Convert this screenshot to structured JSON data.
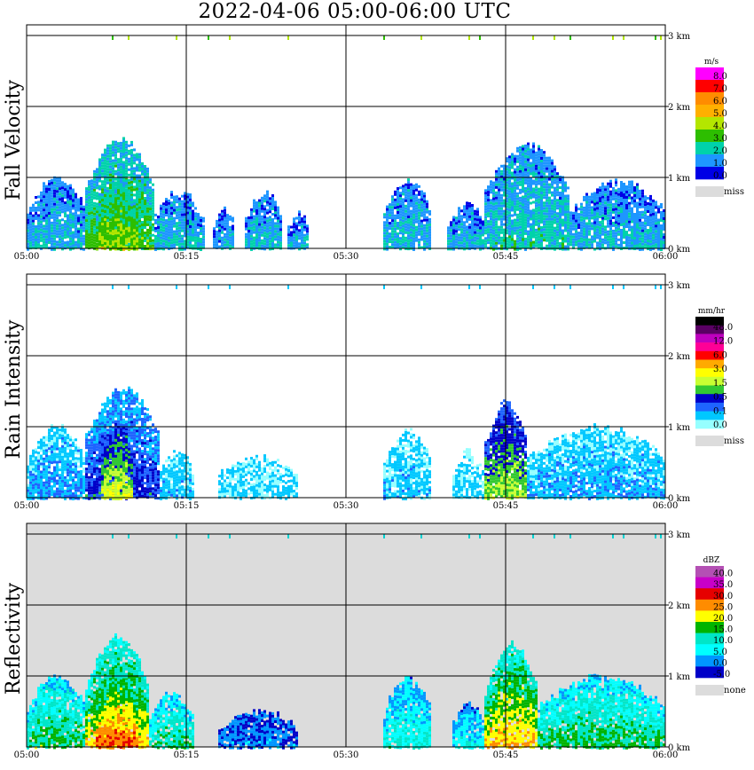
{
  "title": "2022-04-06   05:00-06:00 UTC",
  "x_ticks": [
    "05:00",
    "05:15",
    "05:30",
    "05:45",
    "06:00"
  ],
  "y_ticks": [
    "0 km",
    "1 km",
    "2 km",
    "3 km"
  ],
  "colors": {
    "missing": "#dcdcdc",
    "grid": "#000000"
  },
  "chart_data": [
    {
      "type": "heatmap",
      "ylabel": "Fall Velocity",
      "x_range": [
        "05:00",
        "06:00"
      ],
      "ylim_km": [
        0,
        3.1
      ],
      "grid": true,
      "legend_placement": "right",
      "background": "white",
      "colorbar": {
        "unit": "m/s",
        "labels": [
          "8.0",
          "7.0",
          "6.0",
          "5.0",
          "4.0",
          "3.0",
          "2.0",
          "1.0",
          "0.0"
        ],
        "colors": [
          "#ff00ff",
          "#ff0000",
          "#ff8c00",
          "#ffb000",
          "#b4e600",
          "#2dbe00",
          "#00d2aa",
          "#1e96ff",
          "#0000e6"
        ],
        "missing_label": "miss"
      },
      "echoes": [
        {
          "t0": 0.0,
          "t1": 5.5,
          "top": 1.0,
          "level": 1.4
        },
        {
          "t0": 5.5,
          "t1": 12.0,
          "top": 1.55,
          "level": 2.8
        },
        {
          "t0": 6.5,
          "t1": 10.5,
          "top": 1.0,
          "level": 3.6
        },
        {
          "t0": 12.0,
          "t1": 16.5,
          "top": 0.8,
          "level": 1.5
        },
        {
          "t0": 17.5,
          "t1": 19.5,
          "top": 0.55,
          "level": 1.2
        },
        {
          "t0": 20.5,
          "t1": 24.0,
          "top": 0.78,
          "level": 1.5
        },
        {
          "t0": 24.5,
          "t1": 26.5,
          "top": 0.5,
          "level": 1.3
        },
        {
          "t0": 33.5,
          "t1": 38.0,
          "top": 0.95,
          "level": 1.5
        },
        {
          "t0": 39.5,
          "t1": 43.0,
          "top": 0.65,
          "level": 1.4
        },
        {
          "t0": 43.0,
          "t1": 51.0,
          "top": 1.45,
          "level": 1.8
        },
        {
          "t0": 51.0,
          "t1": 60.0,
          "top": 0.95,
          "level": 1.4
        }
      ]
    },
    {
      "type": "heatmap",
      "ylabel": "Rain Intensity",
      "x_range": [
        "05:00",
        "06:00"
      ],
      "ylim_km": [
        0,
        3.1
      ],
      "grid": true,
      "legend_placement": "right",
      "background": "white",
      "colorbar": {
        "unit": "mm/hr",
        "labels": [
          "48.0",
          "12.0",
          "6.0",
          "3.0",
          "1.5",
          "0.5",
          "0.1",
          "0.0"
        ],
        "colors": [
          "#000000",
          "#5a0064",
          "#be00be",
          "#ff0096",
          "#ff0000",
          "#ffaa00",
          "#ffff00",
          "#c8ff32",
          "#32c832",
          "#0000c8",
          "#1e64ff",
          "#00c8ff",
          "#96ffff"
        ],
        "missing_label": "miss"
      },
      "echoes": [
        {
          "t0": 0.0,
          "t1": 5.5,
          "top": 1.0,
          "level": 1.4
        },
        {
          "t0": 5.5,
          "t1": 12.5,
          "top": 1.55,
          "level": 2.6
        },
        {
          "t0": 7.0,
          "t1": 10.0,
          "top": 1.05,
          "level": 5.0
        },
        {
          "t0": 12.5,
          "t1": 15.5,
          "top": 0.7,
          "level": 1.0
        },
        {
          "t0": 18.0,
          "t1": 25.5,
          "top": 0.6,
          "level": 0.6
        },
        {
          "t0": 33.5,
          "t1": 38.0,
          "top": 0.95,
          "level": 0.9
        },
        {
          "t0": 40.0,
          "t1": 43.0,
          "top": 0.65,
          "level": 0.6
        },
        {
          "t0": 43.0,
          "t1": 47.0,
          "top": 1.35,
          "level": 4.5
        },
        {
          "t0": 47.0,
          "t1": 60.0,
          "top": 1.0,
          "level": 1.2
        }
      ]
    },
    {
      "type": "heatmap",
      "ylabel": "Reflectivity",
      "x_range": [
        "05:00",
        "06:00"
      ],
      "ylim_km": [
        0,
        3.1
      ],
      "grid": true,
      "legend_placement": "right",
      "background": "missing",
      "colorbar": {
        "unit": "dBZ",
        "labels": [
          "40.0",
          "35.0",
          "30.0",
          "25.0",
          "20.0",
          "15.0",
          "10.0",
          "5.0",
          "0.0",
          "-5.0"
        ],
        "colors": [
          "#b450b4",
          "#c800c8",
          "#e60000",
          "#ff8c00",
          "#ffff00",
          "#00b400",
          "#00e6c8",
          "#00ffff",
          "#0096ff",
          "#0000c8"
        ],
        "missing_label": "none"
      },
      "echoes": [
        {
          "t0": 0.0,
          "t1": 5.5,
          "top": 1.0,
          "level": 3.5
        },
        {
          "t0": 5.5,
          "t1": 11.5,
          "top": 1.55,
          "level": 5.0
        },
        {
          "t0": 6.5,
          "t1": 10.5,
          "top": 1.05,
          "level": 6.2
        },
        {
          "t0": 11.5,
          "t1": 15.5,
          "top": 0.75,
          "level": 3.2
        },
        {
          "t0": 18.0,
          "t1": 25.5,
          "top": 0.5,
          "level": 0.8
        },
        {
          "t0": 33.5,
          "t1": 38.0,
          "top": 0.95,
          "level": 2.5
        },
        {
          "t0": 40.0,
          "t1": 43.0,
          "top": 0.6,
          "level": 2.0
        },
        {
          "t0": 43.0,
          "t1": 48.0,
          "top": 1.45,
          "level": 5.2
        },
        {
          "t0": 48.0,
          "t1": 60.0,
          "top": 1.0,
          "level": 3.5
        }
      ]
    }
  ]
}
